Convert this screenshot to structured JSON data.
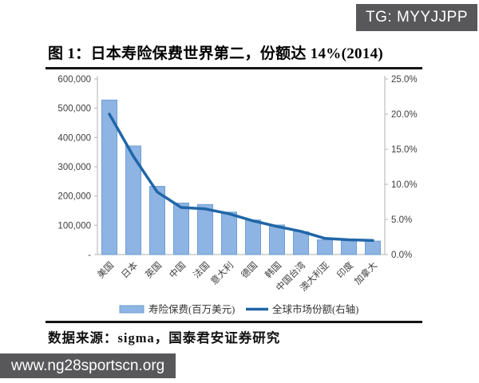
{
  "watermarks": {
    "top_right": "TG: MYYJJPP",
    "bottom_left": "www.ng28sportscn.org"
  },
  "figure": {
    "title": "图 1：日本寿险保费世界第二，份额达 14%(2014)",
    "source": "数据来源：sigma，国泰君安证券研究"
  },
  "chart_data": {
    "type": "bar",
    "subtype": "bar-line-combo",
    "categories": [
      "美国",
      "日本",
      "英国",
      "中国",
      "法国",
      "意大利",
      "德国",
      "韩国",
      "中国台湾",
      "澳大利亚",
      "印度",
      "加拿大"
    ],
    "series": [
      {
        "name": "寿险保费(百万美元)",
        "type": "bar",
        "axis": "left",
        "values": [
          528000,
          371000,
          233000,
          176000,
          171000,
          145000,
          118000,
          101000,
          78000,
          50000,
          47000,
          46000
        ],
        "fill": "#8EB4E3",
        "stroke": "#6E9FD4"
      },
      {
        "name": "全球市场份额(右轴)",
        "type": "line",
        "axis": "right",
        "values": [
          20.0,
          14.0,
          8.9,
          6.7,
          6.5,
          5.8,
          4.8,
          4.0,
          3.3,
          2.3,
          2.1,
          2.0
        ],
        "color": "#2066A8"
      }
    ],
    "left_axis": {
      "min": 0,
      "max": 600000,
      "ticks": [
        "600,000",
        "500,000",
        "400,000",
        "300,000",
        "200,000",
        "100,000",
        "-"
      ]
    },
    "right_axis": {
      "min": 0,
      "max": 25,
      "ticks": [
        "25.0%",
        "20.0%",
        "15.0%",
        "10.0%",
        "5.0%",
        "0.0%"
      ]
    },
    "grid": false,
    "legend_position": "bottom",
    "axis_color": "#bfbfbf",
    "label_color": "#404040"
  }
}
